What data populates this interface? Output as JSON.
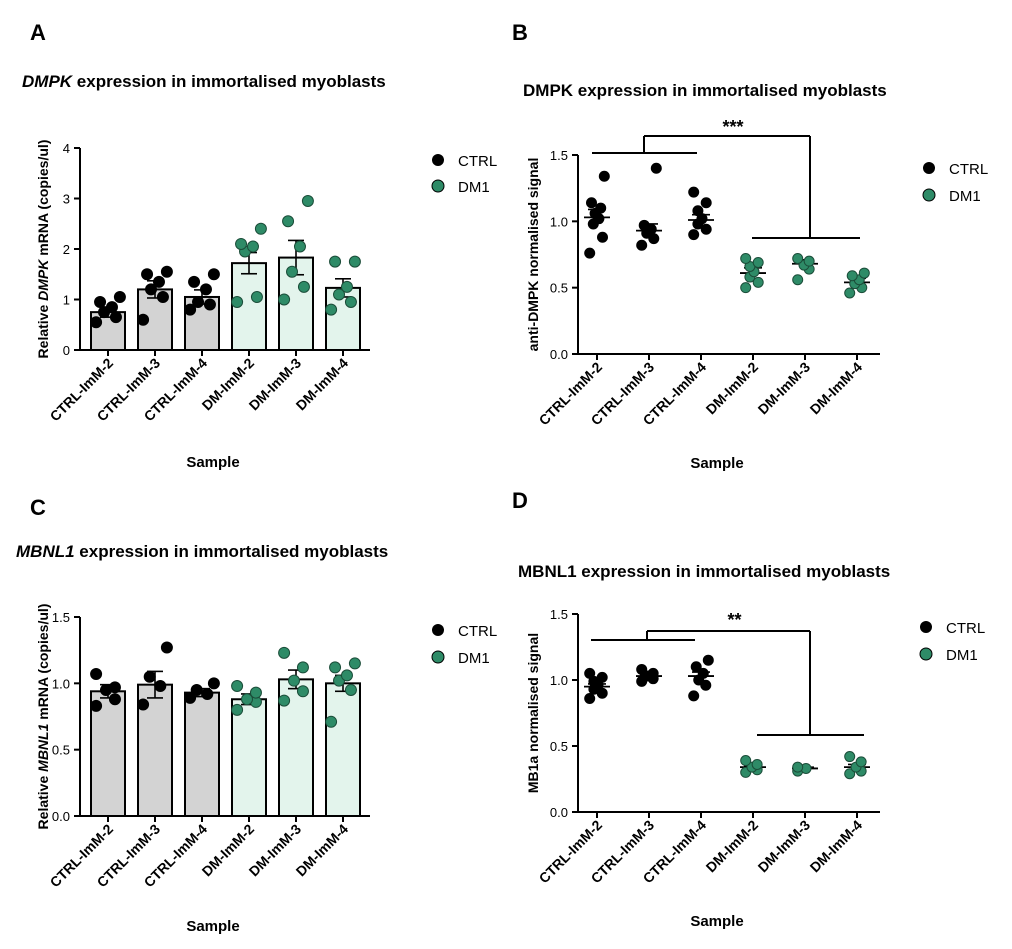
{
  "colors": {
    "ctrl": "#000000",
    "dm": "#2e8b67",
    "ctrl_bar": "#d3d3d3",
    "dm_bar": "#e3f4ec"
  },
  "chart_data": [
    {
      "panel": "A",
      "type": "bar",
      "title_italic": "DMPK",
      "title_rest": " expression in immortalised myoblasts",
      "ylabel_pre": "Relative ",
      "ylabel_italic": "DMPK",
      "ylabel_post": " mRNA (copies/ul)",
      "xlabel": "Sample",
      "categories": [
        "CTRL-ImM-2",
        "CTRL-ImM-3",
        "CTRL-ImM-4",
        "DM-ImM-2",
        "DM-ImM-3",
        "DM-ImM-4"
      ],
      "groups": [
        "CTRL",
        "CTRL",
        "CTRL",
        "DM1",
        "DM1",
        "DM1"
      ],
      "means": [
        0.75,
        1.2,
        1.05,
        1.72,
        1.83,
        1.23
      ],
      "sem": [
        0.1,
        0.17,
        0.14,
        0.21,
        0.34,
        0.18
      ],
      "points": [
        [
          0.55,
          0.65,
          0.75,
          0.85,
          0.95,
          1.05
        ],
        [
          0.6,
          1.05,
          1.2,
          1.35,
          1.5,
          1.55
        ],
        [
          0.8,
          0.9,
          0.95,
          1.2,
          1.35,
          1.5
        ],
        [
          0.95,
          1.05,
          1.95,
          2.05,
          2.1,
          2.4
        ],
        [
          1.0,
          1.25,
          1.55,
          2.05,
          2.55,
          2.95
        ],
        [
          0.8,
          0.95,
          1.1,
          1.25,
          1.75,
          1.75
        ]
      ],
      "yticks": [
        "0",
        "1",
        "2",
        "3",
        "4"
      ],
      "ylim": [
        0,
        4
      ],
      "legend": [
        "CTRL",
        "DM1"
      ]
    },
    {
      "panel": "B",
      "type": "scatter",
      "title": "DMPK expression in immortalised myoblasts",
      "ylabel": "anti-DMPK normalised signal",
      "xlabel": "Sample",
      "categories": [
        "CTRL-ImM-2",
        "CTRL-ImM-3",
        "CTRL-ImM-4",
        "DM-ImM-2",
        "DM-ImM-3",
        "DM-ImM-4"
      ],
      "groups": [
        "CTRL",
        "CTRL",
        "CTRL",
        "DM1",
        "DM1",
        "DM1"
      ],
      "means": [
        1.03,
        0.93,
        1.01,
        0.61,
        0.68,
        0.54
      ],
      "sem": [
        0.06,
        0.05,
        0.04,
        0.04,
        0.03,
        0.03
      ],
      "points": [
        [
          0.76,
          0.88,
          0.98,
          1.02,
          1.06,
          1.1,
          1.14,
          1.34
        ],
        [
          0.82,
          0.87,
          0.91,
          0.94,
          0.97,
          1.4
        ],
        [
          0.9,
          0.94,
          0.98,
          1.02,
          1.08,
          1.14,
          1.22
        ],
        [
          0.5,
          0.54,
          0.58,
          0.62,
          0.66,
          0.69,
          0.72
        ],
        [
          0.56,
          0.64,
          0.67,
          0.7,
          0.72
        ],
        [
          0.46,
          0.5,
          0.53,
          0.56,
          0.59,
          0.61
        ]
      ],
      "yticks": [
        "0.0",
        "0.5",
        "1.0",
        "1.5"
      ],
      "ylim": [
        0,
        1.5
      ],
      "significance": "***",
      "legend": [
        "CTRL",
        "DM1"
      ]
    },
    {
      "panel": "C",
      "type": "bar",
      "title_italic": "MBNL1",
      "title_rest": " expression in immortalised myoblasts",
      "ylabel_pre": "Relative ",
      "ylabel_italic": "MBNL1",
      "ylabel_post": " mRNA (copies/ul)",
      "xlabel": "Sample",
      "categories": [
        "CTRL-ImM-2",
        "CTRL-ImM-3",
        "CTRL-ImM-4",
        "DM-ImM-2",
        "DM-ImM-3",
        "DM-ImM-4"
      ],
      "groups": [
        "CTRL",
        "CTRL",
        "CTRL",
        "DM1",
        "DM1",
        "DM1"
      ],
      "means": [
        0.94,
        0.99,
        0.93,
        0.88,
        1.03,
        1.0
      ],
      "sem": [
        0.05,
        0.1,
        0.03,
        0.04,
        0.07,
        0.06
      ],
      "points": [
        [
          0.83,
          0.88,
          0.95,
          0.97,
          1.07
        ],
        [
          0.84,
          0.98,
          1.05,
          1.27
        ],
        [
          0.89,
          0.92,
          0.95,
          1.0
        ],
        [
          0.8,
          0.86,
          0.88,
          0.93,
          0.98
        ],
        [
          0.87,
          0.94,
          1.02,
          1.12,
          1.23
        ],
        [
          0.71,
          0.95,
          1.02,
          1.06,
          1.12,
          1.15
        ]
      ],
      "yticks": [
        "0.0",
        "0.5",
        "1.0",
        "1.5"
      ],
      "ylim": [
        0,
        1.5
      ],
      "legend": [
        "CTRL",
        "DM1"
      ]
    },
    {
      "panel": "D",
      "type": "scatter",
      "title": "MBNL1 expression in immortalised myoblasts",
      "ylabel": "MB1a normalised signal",
      "xlabel": "Sample",
      "categories": [
        "CTRL-ImM-2",
        "CTRL-ImM-3",
        "CTRL-ImM-4",
        "DM-ImM-2",
        "DM-ImM-3",
        "DM-ImM-4"
      ],
      "groups": [
        "CTRL",
        "CTRL",
        "CTRL",
        "DM1",
        "DM1",
        "DM1"
      ],
      "means": [
        0.95,
        1.03,
        1.03,
        0.34,
        0.33,
        0.34
      ],
      "sem": [
        0.02,
        0.01,
        0.03,
        0.01,
        0.01,
        0.02
      ],
      "points": [
        [
          0.86,
          0.9,
          0.93,
          0.96,
          0.99,
          1.02,
          1.05
        ],
        [
          0.99,
          1.01,
          1.03,
          1.05,
          1.08
        ],
        [
          0.88,
          0.96,
          1.0,
          1.05,
          1.1,
          1.15
        ],
        [
          0.3,
          0.32,
          0.34,
          0.36,
          0.39
        ],
        [
          0.31,
          0.33,
          0.34
        ],
        [
          0.29,
          0.31,
          0.34,
          0.38,
          0.42
        ]
      ],
      "yticks": [
        "0.0",
        "0.5",
        "1.0",
        "1.5"
      ],
      "ylim": [
        0,
        1.5
      ],
      "significance": "**",
      "legend": [
        "CTRL",
        "DM1"
      ]
    }
  ]
}
